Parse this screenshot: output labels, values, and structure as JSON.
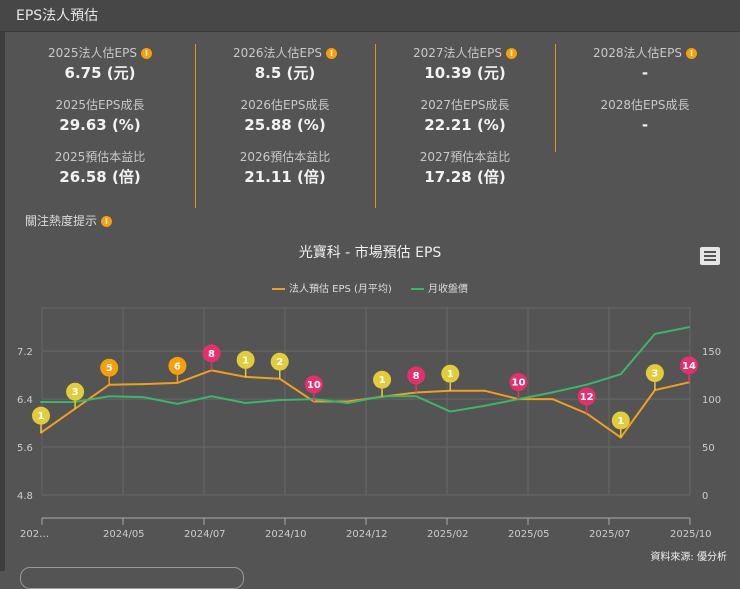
{
  "header": {
    "title": "EPS法人預估"
  },
  "columns": [
    {
      "rows": [
        {
          "label": "2025法人估EPS",
          "value": "6.75 (元)",
          "info": true
        },
        {
          "label": "2025估EPS成長",
          "value": "29.63 (%)"
        },
        {
          "label": "2025預估本益比",
          "value": "26.58 (倍)"
        }
      ]
    },
    {
      "rows": [
        {
          "label": "2026法人估EPS",
          "value": "8.5 (元)",
          "info": true
        },
        {
          "label": "2026估EPS成長",
          "value": "25.88 (%)"
        },
        {
          "label": "2026預估本益比",
          "value": "21.11 (倍)"
        }
      ]
    },
    {
      "rows": [
        {
          "label": "2027法人估EPS",
          "value": "10.39 (元)",
          "info": true
        },
        {
          "label": "2027估EPS成長",
          "value": "22.21 (%)"
        },
        {
          "label": "2027預估本益比",
          "value": "17.28 (倍)"
        }
      ]
    },
    {
      "rows": [
        {
          "label": "2028法人估EPS",
          "value": "-",
          "info": true
        },
        {
          "label": "2028估EPS成長",
          "value": "-"
        }
      ]
    }
  ],
  "info_icon": "info-icon",
  "attention_hint": {
    "label": "關注熱度提示"
  },
  "chart_data": {
    "type": "line",
    "title": "光寶科 - 市場預估 EPS",
    "x_tick_labels": [
      "202…",
      "2024/05",
      "2024/07",
      "2024/10",
      "2024/12",
      "2025/02",
      "2025/05",
      "2025/07",
      "2025/10"
    ],
    "y_left": {
      "ticks": [
        4.8,
        5.6,
        6.4,
        7.2
      ],
      "tick_labels": [
        "4.8",
        "5.6",
        "6.4",
        "7.2"
      ],
      "range": [
        4.8,
        7.92
      ]
    },
    "y_right": {
      "ticks": [
        0,
        50,
        100,
        150
      ],
      "tick_labels": [
        "0",
        "50",
        "100",
        "150"
      ],
      "range": [
        0,
        195
      ]
    },
    "grid": true,
    "legend_position": "top",
    "series": [
      {
        "name": "法人預估 EPS (月平均)",
        "axis": "left",
        "color": "#f0a020",
        "values": [
          5.84,
          6.24,
          6.64,
          6.65,
          6.67,
          6.88,
          6.77,
          6.74,
          6.36,
          6.36,
          6.44,
          6.51,
          6.54,
          6.54,
          6.4,
          6.4,
          6.16,
          5.76,
          6.55,
          6.68
        ]
      },
      {
        "name": "月收盤價",
        "axis": "right",
        "color": "#3fb56a",
        "values": [
          97,
          97,
          103,
          102,
          95,
          103,
          96,
          99,
          100,
          96,
          103,
          103,
          87,
          93,
          100,
          107,
          115,
          126,
          168,
          175
        ]
      }
    ],
    "markers": [
      {
        "index": 0,
        "label": "1",
        "color": "#e3cc3c"
      },
      {
        "index": 1,
        "label": "3",
        "color": "#e3cc3c"
      },
      {
        "index": 2,
        "label": "5",
        "color": "#f5a00a"
      },
      {
        "index": 4,
        "label": "6",
        "color": "#f5a00a"
      },
      {
        "index": 5,
        "label": "8",
        "color": "#e5306e"
      },
      {
        "index": 6,
        "label": "1",
        "color": "#e3cc3c"
      },
      {
        "index": 7,
        "label": "2",
        "color": "#e3cc3c"
      },
      {
        "index": 8,
        "label": "10",
        "color": "#e5306e"
      },
      {
        "index": 10,
        "label": "1",
        "color": "#e3cc3c"
      },
      {
        "index": 11,
        "label": "8",
        "color": "#e5306e"
      },
      {
        "index": 12,
        "label": "1",
        "color": "#e3cc3c"
      },
      {
        "index": 14,
        "label": "10",
        "color": "#e5306e"
      },
      {
        "index": 16,
        "label": "12",
        "color": "#e5306e"
      },
      {
        "index": 17,
        "label": "1",
        "color": "#e3cc3c"
      },
      {
        "index": 18,
        "label": "3",
        "color": "#e3cc3c"
      },
      {
        "index": 19,
        "label": "14",
        "color": "#e5306e"
      }
    ]
  },
  "chart_menu_icon": "hamburger-menu-icon",
  "source": "資料來源: 優分析"
}
